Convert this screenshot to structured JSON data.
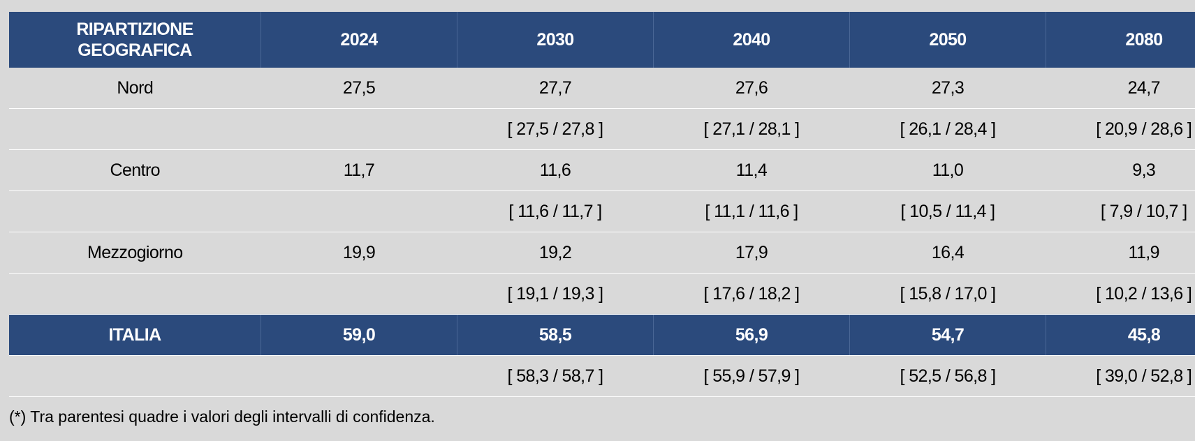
{
  "table": {
    "header": [
      "RIPARTIZIONE GEOGRAFICA",
      "2024",
      "2030",
      "2040",
      "2050",
      "2080"
    ],
    "rows": [
      {
        "label": "Nord",
        "values": [
          "27,5",
          "27,7",
          "27,6",
          "27,3",
          "24,7"
        ],
        "intervals": [
          "[ 27,5 / 27,8 ]",
          "[ 27,1 / 28,1 ]",
          "[ 26,1 / 28,4 ]",
          "[ 20,9 / 28,6 ]"
        ]
      },
      {
        "label": "Centro",
        "values": [
          "11,7",
          "11,6",
          "11,4",
          "11,0",
          "9,3"
        ],
        "intervals": [
          "[ 11,6 / 11,7 ]",
          "[ 11,1 / 11,6 ]",
          "[ 10,5 / 11,4 ]",
          "[ 7,9 / 10,7 ]"
        ]
      },
      {
        "label": "Mezzogiorno",
        "values": [
          "19,9",
          "19,2",
          "17,9",
          "16,4",
          "11,9"
        ],
        "intervals": [
          "[ 19,1 / 19,3 ]",
          "[ 17,6 / 18,2 ]",
          "[ 15,8 / 17,0 ]",
          "[ 10,2 / 13,6 ]"
        ]
      }
    ],
    "total": {
      "label": "ITALIA",
      "values": [
        "59,0",
        "58,5",
        "56,9",
        "54,7",
        "45,8"
      ],
      "intervals": [
        "[ 58,3 / 58,7 ]",
        "[ 55,9 / 57,9 ]",
        "[ 52,5 / 56,8 ]",
        "[ 39,0 / 52,8 ]"
      ]
    }
  },
  "footnote": "(*) Tra parentesi quadre i valori degli intervalli di confidenza."
}
